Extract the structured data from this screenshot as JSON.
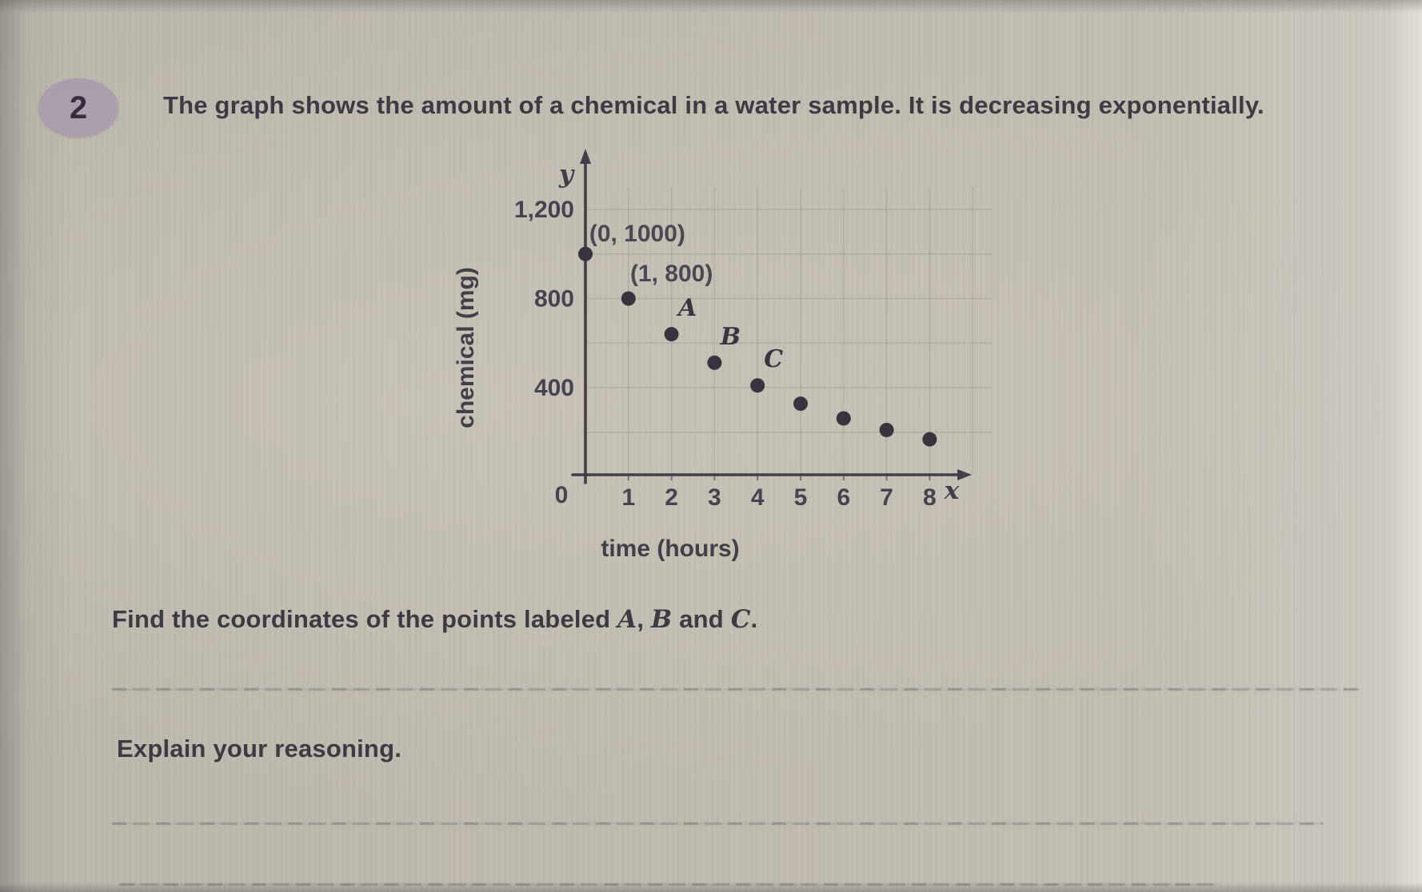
{
  "colors": {
    "page_bg": "#c9c4b9",
    "badge_bg": "#b1a4b3",
    "ink": "#3e3843",
    "chart_ink": "#423d47",
    "point_color": "#37323c",
    "grid_color": "#908b7f"
  },
  "page": {
    "problem_number": "2",
    "title": "The graph shows the amount of a chemical in a water sample. It is decreasing exponentially.",
    "question": {
      "prefix": "Find the coordinates of the points labeled ",
      "point_a": "A",
      "comma": ", ",
      "point_b": "B",
      "and_word": " and ",
      "point_c": "C",
      "period": "."
    },
    "explain_prompt": "Explain your reasoning."
  },
  "chart_data": {
    "type": "scatter",
    "title": "",
    "xlabel": "time (hours)",
    "ylabel": "chemical (mg)",
    "x_axis_symbol": "x",
    "y_axis_symbol": "y",
    "origin_label": "0",
    "xlim": [
      0,
      9
    ],
    "ylim": [
      0,
      1300
    ],
    "grid": true,
    "legend": false,
    "x_ticks": [
      1,
      2,
      3,
      4,
      5,
      6,
      7,
      8
    ],
    "y_ticks": [
      {
        "value": 400,
        "label": "400"
      },
      {
        "value": 800,
        "label": "800"
      },
      {
        "value": 1200,
        "label": "1,200"
      }
    ],
    "x_grid_values": [
      1,
      2,
      3,
      4,
      5,
      6,
      7,
      8,
      9
    ],
    "y_grid_values": [
      200,
      400,
      600,
      800,
      1000,
      1200
    ],
    "points": [
      {
        "x": 0,
        "y": 1000
      },
      {
        "x": 1,
        "y": 800
      },
      {
        "x": 2,
        "y": 640,
        "label": "A"
      },
      {
        "x": 3,
        "y": 512,
        "label": "B"
      },
      {
        "x": 4,
        "y": 410,
        "label": "C"
      },
      {
        "x": 5,
        "y": 328
      },
      {
        "x": 6,
        "y": 262
      },
      {
        "x": 7,
        "y": 210
      },
      {
        "x": 8,
        "y": 168
      }
    ],
    "annotations": [
      {
        "text": "(0, 1000)",
        "x": 0.09,
        "y": 1056
      },
      {
        "text": "(1, 800)",
        "x": 1.04,
        "y": 877
      }
    ]
  }
}
